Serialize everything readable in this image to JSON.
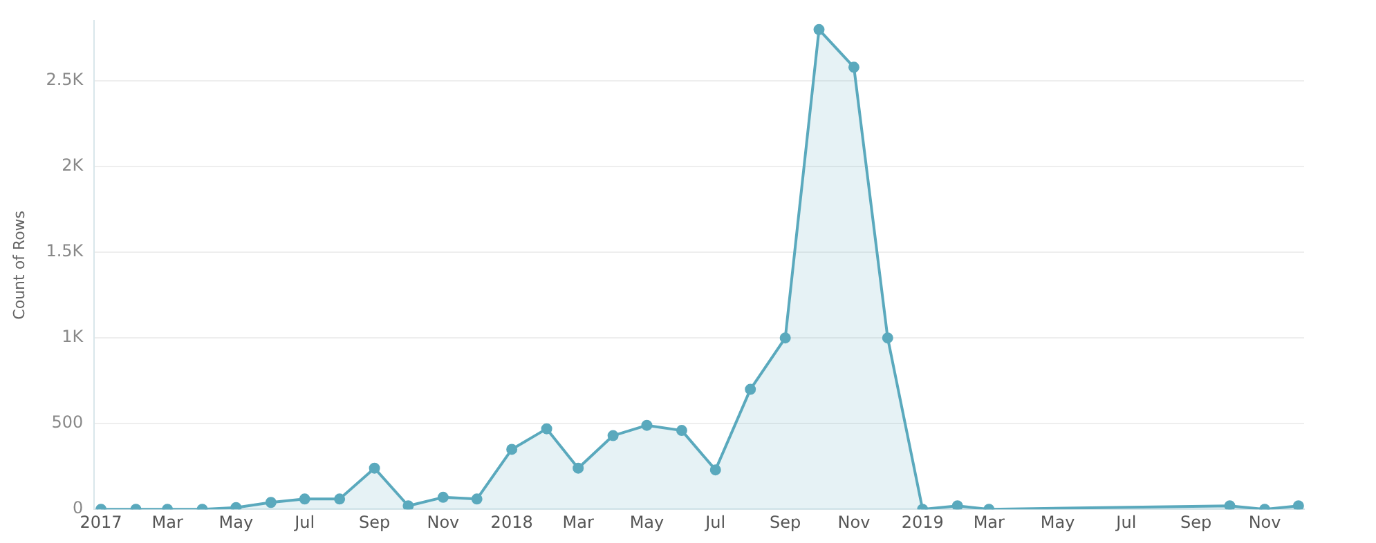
{
  "chart_data": {
    "type": "area",
    "ylabel": "Count of Rows",
    "x": [
      "2017-01",
      "2017-02",
      "2017-03",
      "2017-04",
      "2017-05",
      "2017-06",
      "2017-07",
      "2017-08",
      "2017-09",
      "2017-10",
      "2017-11",
      "2017-12",
      "2018-01",
      "2018-02",
      "2018-03",
      "2018-04",
      "2018-05",
      "2018-06",
      "2018-07",
      "2018-08",
      "2018-09",
      "2018-10",
      "2018-11",
      "2018-12",
      "2019-01",
      "2019-02",
      "2019-03",
      "2019-10",
      "2019-11",
      "2019-12"
    ],
    "series": [
      {
        "color": "#5aa9bd",
        "values": [
          0,
          0,
          0,
          0,
          10,
          40,
          60,
          60,
          240,
          20,
          70,
          60,
          350,
          470,
          240,
          430,
          490,
          460,
          230,
          700,
          1000,
          2800,
          2580,
          1000,
          0,
          20,
          0,
          20,
          0,
          20
        ]
      }
    ],
    "xlim": [
      "2016-12-26",
      "2019-12-06"
    ],
    "xticks": [
      {
        "value": "2017-01",
        "label": "2017"
      },
      {
        "value": "2017-03",
        "label": "Mar"
      },
      {
        "value": "2017-05",
        "label": "May"
      },
      {
        "value": "2017-07",
        "label": "Jul"
      },
      {
        "value": "2017-09",
        "label": "Sep"
      },
      {
        "value": "2017-11",
        "label": "Nov"
      },
      {
        "value": "2018-01",
        "label": "2018"
      },
      {
        "value": "2018-03",
        "label": "Mar"
      },
      {
        "value": "2018-05",
        "label": "May"
      },
      {
        "value": "2018-07",
        "label": "Jul"
      },
      {
        "value": "2018-09",
        "label": "Sep"
      },
      {
        "value": "2018-11",
        "label": "Nov"
      },
      {
        "value": "2019-01",
        "label": "2019"
      },
      {
        "value": "2019-03",
        "label": "Mar"
      },
      {
        "value": "2019-05",
        "label": "May"
      },
      {
        "value": "2019-07",
        "label": "Jul"
      },
      {
        "value": "2019-09",
        "label": "Sep"
      },
      {
        "value": "2019-11",
        "label": "Nov"
      }
    ],
    "ylim": [
      0,
      2850
    ],
    "yticks": [
      0,
      500,
      {
        "value": 1000,
        "label": "1K"
      },
      {
        "value": 1500,
        "label": "1.5K"
      },
      {
        "value": 2000,
        "label": "2K"
      },
      {
        "value": 2500,
        "label": "2.5K"
      }
    ],
    "grid": "y",
    "legend": false,
    "marker": "circle",
    "line_style": "solid"
  }
}
